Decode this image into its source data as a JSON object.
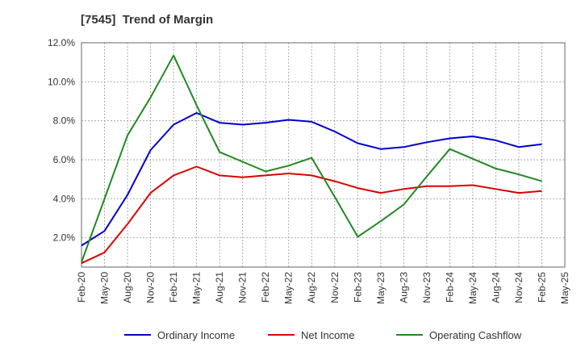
{
  "chart_data": {
    "type": "line",
    "title": "[7545]  Trend of Margin",
    "xlabel": "",
    "ylabel": "",
    "ylim": [
      0.5,
      12.0
    ],
    "y_ticks": [
      "2.0%",
      "4.0%",
      "6.0%",
      "8.0%",
      "10.0%",
      "12.0%"
    ],
    "y_tick_values": [
      2,
      4,
      6,
      8,
      10,
      12
    ],
    "x_ticks": [
      "Feb-20",
      "May-20",
      "Aug-20",
      "Nov-20",
      "Feb-21",
      "May-21",
      "Aug-21",
      "Nov-21",
      "Feb-22",
      "May-22",
      "Aug-22",
      "Nov-22",
      "Feb-23",
      "May-23",
      "Aug-23",
      "Nov-23",
      "Feb-24",
      "May-24",
      "Aug-24",
      "Nov-24",
      "Feb-25",
      "May-25"
    ],
    "grid": true,
    "legend_position": "bottom",
    "series": [
      {
        "name": "Ordinary Income",
        "color": "#0000cc",
        "values": [
          1.6,
          2.35,
          4.2,
          6.5,
          7.8,
          8.4,
          7.9,
          7.8,
          7.9,
          8.05,
          7.95,
          7.45,
          6.85,
          6.55,
          6.65,
          6.9,
          7.1,
          7.2,
          7.0,
          6.65,
          6.8
        ]
      },
      {
        "name": "Net Income",
        "color": "#dd0000",
        "values": [
          0.7,
          1.25,
          2.7,
          4.3,
          5.2,
          5.65,
          5.2,
          5.1,
          5.2,
          5.3,
          5.2,
          4.9,
          4.55,
          4.3,
          4.5,
          4.65,
          4.65,
          4.7,
          4.5,
          4.3,
          4.4
        ]
      },
      {
        "name": "Operating Cashflow",
        "color": "#228822",
        "values": [
          0.75,
          4.0,
          7.25,
          9.2,
          11.35,
          8.8,
          6.4,
          5.9,
          5.4,
          5.7,
          6.1,
          4.1,
          2.05,
          2.85,
          3.7,
          5.15,
          6.55,
          6.05,
          5.55,
          5.25,
          4.9
        ]
      }
    ]
  }
}
